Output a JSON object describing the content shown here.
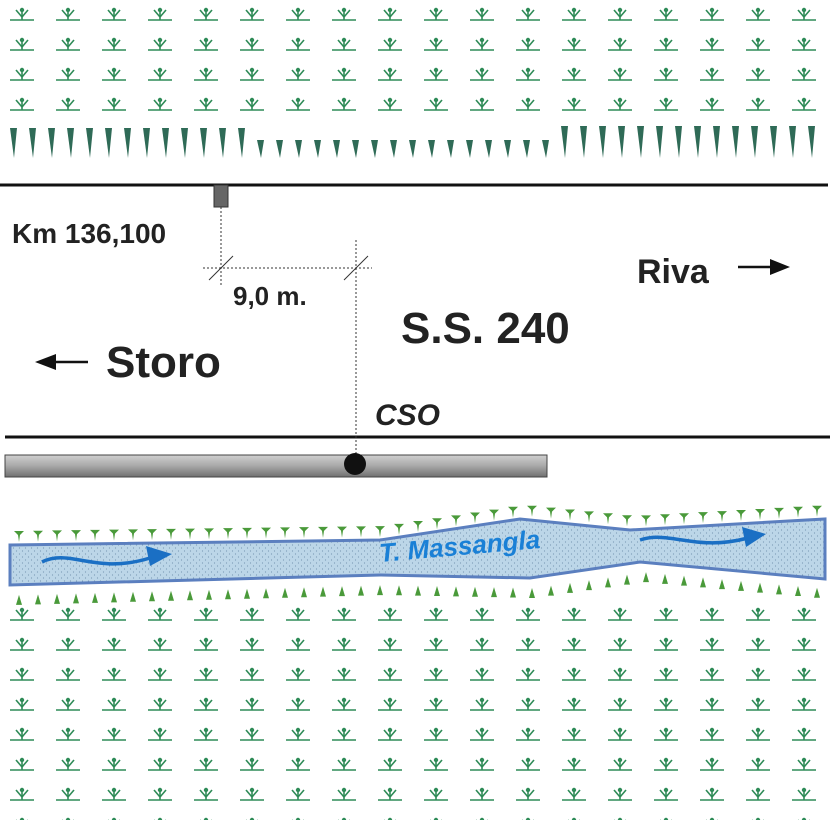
{
  "labels": {
    "km": "Km 136,100",
    "distance": "9,0 m.",
    "east": "Riva",
    "west": "Storo",
    "road": "S.S. 240",
    "station": "CSO",
    "river": "T. Massangla"
  }
}
